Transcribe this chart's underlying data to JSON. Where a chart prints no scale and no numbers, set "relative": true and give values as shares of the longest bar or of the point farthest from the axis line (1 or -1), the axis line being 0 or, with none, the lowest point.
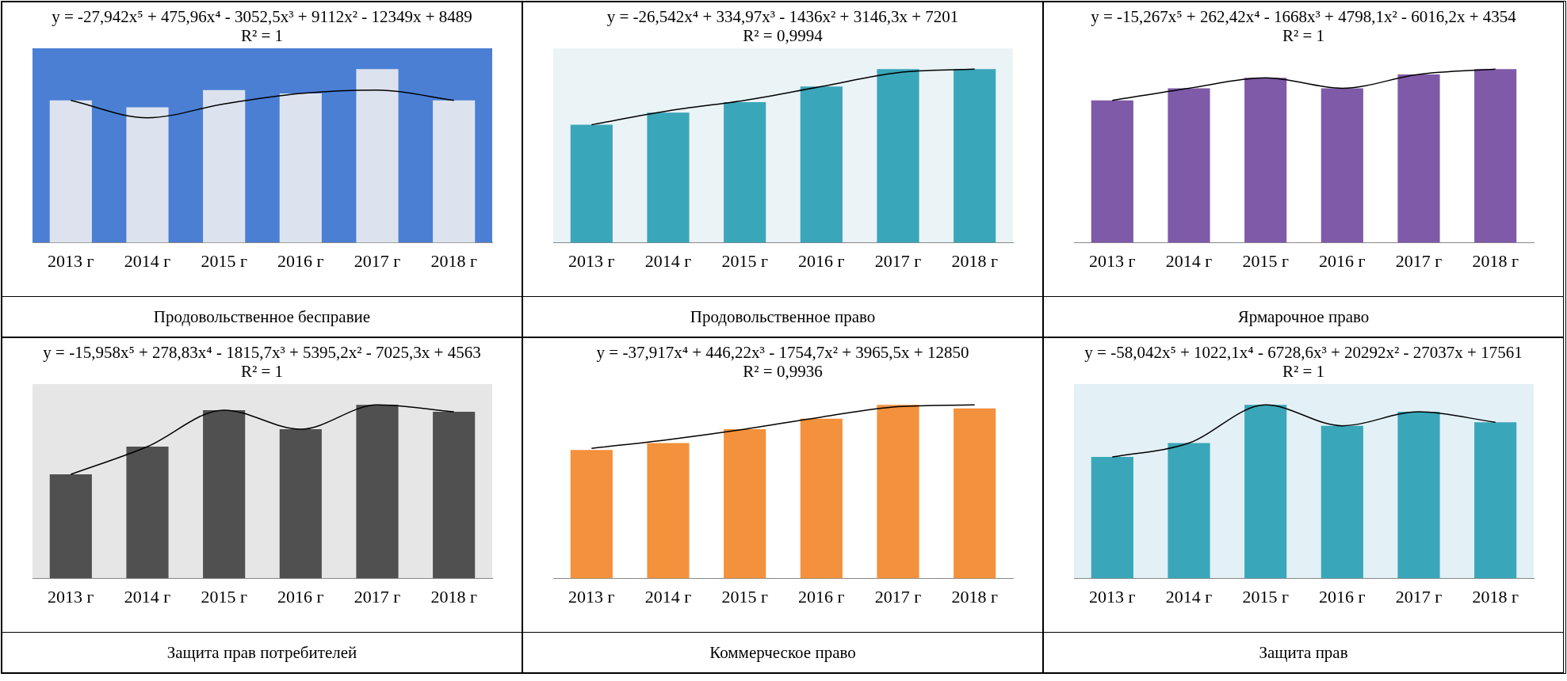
{
  "chart_data": [
    {
      "type": "bar",
      "relative": true,
      "title": "y = -27,942x⁵ + 475,96x⁴ - 3052,5x³ + 9112x² - 12349x + 8489",
      "subtitle": "R² = 1",
      "categories": [
        "2013 г",
        "2014 г",
        "2015 г",
        "2016 г",
        "2017 г",
        "2018 г"
      ],
      "series": [
        {
          "color": "#dde3ee",
          "values": [
            0.82,
            0.78,
            0.88,
            0.86,
            1,
            0.82
          ]
        },
        {
          "type": "line",
          "color": "#000000",
          "values": [
            0.82,
            0.72,
            0.8,
            0.86,
            0.88,
            0.82
          ]
        }
      ],
      "annotations": [
        "Продовольственное бесправие"
      ]
    },
    {
      "type": "bar",
      "relative": true,
      "title": "y = -26,542x⁴ + 334,97x³ - 1436x² + 3146,3x + 7201",
      "subtitle": "R² = 0,9994",
      "categories": [
        "2013 г",
        "2014 г",
        "2015 г",
        "2016 г",
        "2017 г",
        "2018 г"
      ],
      "series": [
        {
          "color": "#3aa6b9",
          "values": [
            0.68,
            0.75,
            0.81,
            0.9,
            1,
            1
          ]
        },
        {
          "type": "line",
          "color": "#000000",
          "values": [
            0.68,
            0.76,
            0.82,
            0.9,
            0.98,
            1
          ]
        }
      ],
      "annotations": [
        "Продовольственное право"
      ]
    },
    {
      "type": "bar",
      "relative": true,
      "title": "y = -15,267x⁵ + 262,42x⁴ - 1668x³ + 4798,1x² - 6016,2x + 4354",
      "subtitle": "R² = 1",
      "categories": [
        "2013 г",
        "2014 г",
        "2015 г",
        "2016 г",
        "2017 г",
        "2018 г"
      ],
      "series": [
        {
          "color": "#7f5aa8",
          "values": [
            0.82,
            0.89,
            0.95,
            0.89,
            0.97,
            1
          ]
        },
        {
          "type": "line",
          "color": "#000000",
          "values": [
            0.82,
            0.89,
            0.95,
            0.89,
            0.97,
            1
          ]
        }
      ],
      "annotations": [
        "Ярмарочное право"
      ]
    },
    {
      "type": "bar",
      "relative": true,
      "title": "y = -15,958x⁵ + 278,83x⁴ - 1815,7x³ + 5395,2x² - 7025,3x + 4563",
      "subtitle": "R² = 1",
      "categories": [
        "2013 г",
        "2014 г",
        "2015 г",
        "2016 г",
        "2017 г",
        "2018 г"
      ],
      "series": [
        {
          "color": "#505050",
          "values": [
            0.6,
            0.76,
            0.97,
            0.86,
            1,
            0.96
          ]
        },
        {
          "type": "line",
          "color": "#000000",
          "values": [
            0.6,
            0.76,
            0.97,
            0.86,
            1,
            0.96
          ]
        }
      ],
      "annotations": [
        "Защита прав потребителей"
      ]
    },
    {
      "type": "bar",
      "relative": true,
      "title": "y = -37,917x⁴ + 446,22x³ - 1754,7x² + 3965,5x + 12850",
      "subtitle": "R² = 0,9936",
      "categories": [
        "2013 г",
        "2014 г",
        "2015 г",
        "2016 г",
        "2017 г",
        "2018 г"
      ],
      "series": [
        {
          "color": "#f3913c",
          "values": [
            0.74,
            0.78,
            0.86,
            0.92,
            1,
            0.98
          ]
        },
        {
          "type": "line",
          "color": "#000000",
          "values": [
            0.75,
            0.8,
            0.86,
            0.93,
            0.99,
            1
          ]
        }
      ],
      "annotations": [
        "Коммерческое право"
      ]
    },
    {
      "type": "bar",
      "relative": true,
      "title": "y = -58,042x⁵ + 1022,1x⁴ - 6728,6x³ + 20292x² - 27037x + 17561",
      "subtitle": "R² = 1",
      "categories": [
        "2013 г",
        "2014 г",
        "2015 г",
        "2016 г",
        "2017 г",
        "2018 г"
      ],
      "series": [
        {
          "color": "#3aa6b9",
          "values": [
            0.7,
            0.78,
            1,
            0.88,
            0.96,
            0.9
          ]
        },
        {
          "type": "line",
          "color": "#000000",
          "values": [
            0.7,
            0.78,
            1,
            0.88,
            0.96,
            0.9
          ]
        }
      ],
      "annotations": [
        "Защита прав"
      ]
    }
  ]
}
